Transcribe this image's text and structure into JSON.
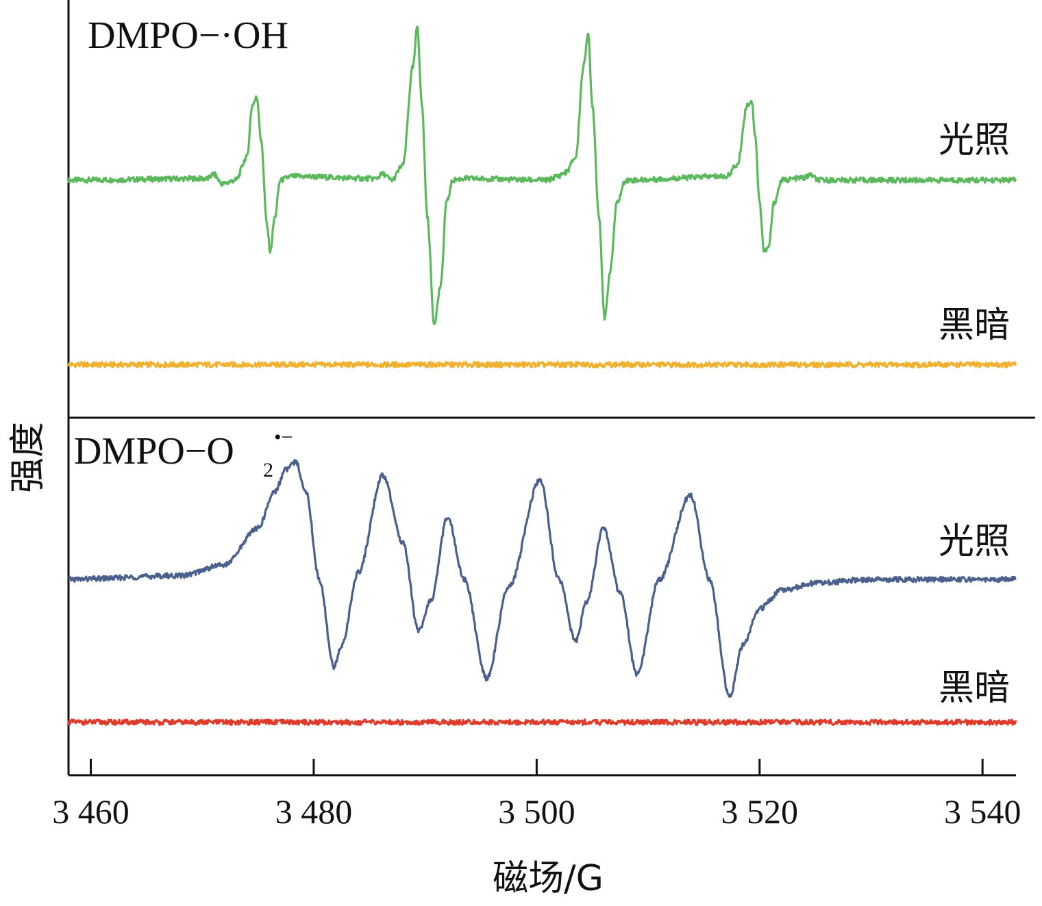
{
  "chart_data": {
    "type": "line",
    "xlabel": "磁场/G",
    "ylabel": "强度",
    "xlim": [
      3458,
      3543
    ],
    "xticks": [
      3460,
      3480,
      3500,
      3520,
      3540
    ],
    "xtick_labels": [
      "3 460",
      "3 480",
      "3 500",
      "3 520",
      "3 540"
    ],
    "grid": false,
    "panels": [
      {
        "title": "DMPO−·OH",
        "ylim": [
          -2.0,
          1.8
        ],
        "series": [
          {
            "name": "光照",
            "color": "#5cb85c",
            "offset": 0,
            "x": [
              3458.0,
              3470.5,
              3471.0,
              3471.8,
              3473.0,
              3474.0,
              3474.5,
              3474.9,
              3475.3,
              3475.8,
              3476.1,
              3476.5,
              3477.0,
              3478.0,
              3485.5,
              3486.2,
              3487.0,
              3488.0,
              3488.9,
              3489.3,
              3489.7,
              3490.2,
              3490.8,
              3491.4,
              3491.9,
              3492.5,
              3493.5,
              3501.0,
              3501.8,
              3502.6,
              3503.5,
              3504.2,
              3504.6,
              3505.0,
              3505.6,
              3506.1,
              3506.6,
              3507.2,
              3508.0,
              3517.0,
              3518.0,
              3518.9,
              3519.3,
              3519.6,
              3520.0,
              3520.4,
              3520.8,
              3521.3,
              3522.0,
              3524.0,
              3524.6,
              3525.2,
              3543.0
            ],
            "y": [
              0.0,
              0.02,
              0.08,
              -0.05,
              0.0,
              0.3,
              1.0,
              1.1,
              0.5,
              -0.6,
              -0.95,
              -0.5,
              0.0,
              0.05,
              0.02,
              0.08,
              0.0,
              0.2,
              1.5,
              2.05,
              1.0,
              -0.5,
              -1.9,
              -1.4,
              -0.3,
              0.0,
              0.02,
              0.0,
              0.05,
              0.1,
              0.3,
              1.5,
              1.95,
              1.0,
              -0.5,
              -1.85,
              -1.2,
              -0.3,
              0.0,
              0.05,
              0.2,
              1.0,
              1.05,
              0.6,
              -0.3,
              -0.95,
              -0.9,
              -0.3,
              0.0,
              0.03,
              0.07,
              0.0,
              0.0
            ]
          },
          {
            "name": "黑暗",
            "color": "#f0b030",
            "offset": -2.45,
            "x": [
              3458.0,
              3543.0
            ],
            "y": [
              0.0,
              0.0
            ]
          }
        ]
      },
      {
        "title": "DMPO−O",
        "title_sub": "2",
        "title_sup": "•−",
        "ylim": [
          -1.9,
          1.75
        ],
        "series": [
          {
            "name": "光照",
            "color": "#4a5f8c",
            "offset": 0,
            "x": [
              3458.0,
              3468.0,
              3472.0,
              3475.0,
              3476.5,
              3477.5,
              3478.4,
              3479.3,
              3480.5,
              3481.8,
              3482.5,
              3484.0,
              3486.2,
              3488.0,
              3489.4,
              3490.5,
              3492.0,
              3493.5,
              3495.5,
              3497.5,
              3500.3,
              3502.0,
              3503.5,
              3504.5,
              3506.0,
              3507.5,
              3509.0,
              3511.0,
              3513.8,
              3515.5,
              3517.3,
              3518.5,
              3520.0,
              3522.0,
              3525.0,
              3530.0,
              3543.0
            ],
            "y": [
              0.0,
              0.05,
              0.2,
              0.7,
              1.2,
              1.5,
              1.6,
              1.2,
              0.0,
              -1.2,
              -0.9,
              0.1,
              1.42,
              0.5,
              -0.7,
              -0.3,
              0.85,
              0.0,
              -1.35,
              -0.1,
              1.35,
              0.0,
              -0.85,
              -0.3,
              0.7,
              -0.2,
              -1.3,
              0.0,
              1.15,
              0.0,
              -1.6,
              -0.9,
              -0.4,
              -0.15,
              -0.05,
              0.0,
              0.0
            ]
          },
          {
            "name": "黑暗",
            "color": "#e03a2a",
            "offset": -1.95,
            "x": [
              3458.0,
              3543.0
            ],
            "y": [
              0.0,
              0.0
            ]
          }
        ]
      }
    ]
  }
}
